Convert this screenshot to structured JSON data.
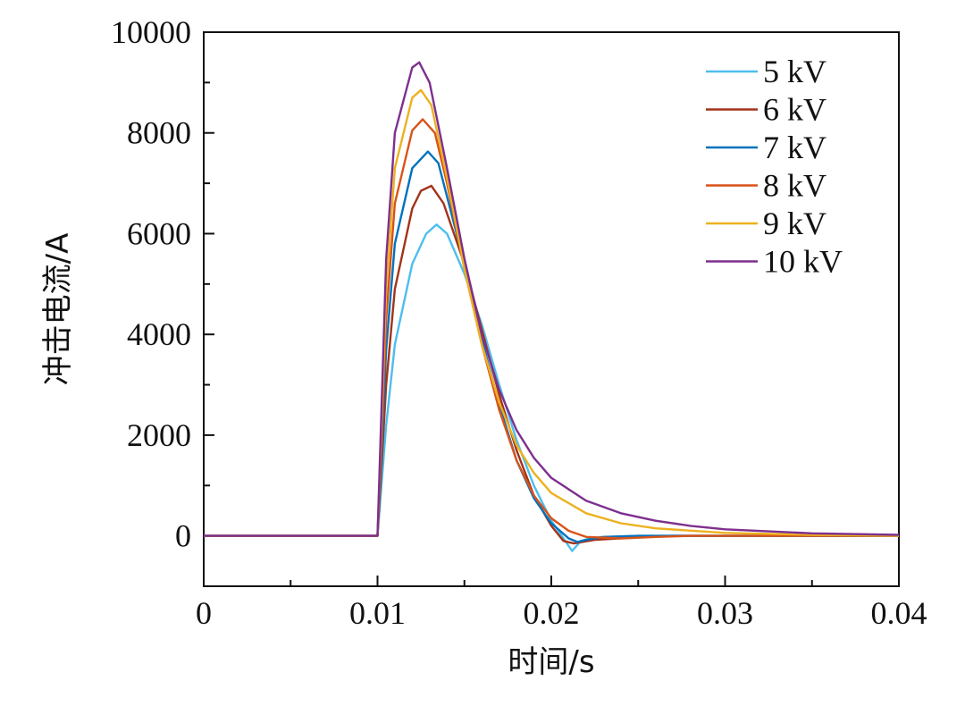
{
  "chart_data": {
    "type": "line",
    "title": "",
    "xlabel": "时间/s",
    "ylabel": "冲击电流/A",
    "xlim": [
      0,
      0.04
    ],
    "ylim": [
      -1000,
      10000
    ],
    "xticks": [
      0,
      0.01,
      0.02,
      0.03,
      0.04
    ],
    "xtick_labels": [
      "0",
      "0.01",
      "0.02",
      "0.03",
      "0.04"
    ],
    "yticks": [
      0,
      2000,
      4000,
      6000,
      8000,
      10000
    ],
    "ytick_labels": [
      "0",
      "2000",
      "4000",
      "6000",
      "8000",
      "10000"
    ],
    "grid": false,
    "legend_position": "top-right",
    "series": [
      {
        "name": "5 kV",
        "color": "#4DBEEE",
        "points": [
          [
            0,
            0
          ],
          [
            0.01,
            0
          ],
          [
            0.0105,
            2200
          ],
          [
            0.011,
            3800
          ],
          [
            0.012,
            5400
          ],
          [
            0.0128,
            6000
          ],
          [
            0.0134,
            6180
          ],
          [
            0.014,
            6000
          ],
          [
            0.015,
            5200
          ],
          [
            0.016,
            4200
          ],
          [
            0.017,
            3000
          ],
          [
            0.018,
            1900
          ],
          [
            0.019,
            1000
          ],
          [
            0.02,
            300
          ],
          [
            0.0206,
            0
          ],
          [
            0.0212,
            -300
          ],
          [
            0.0217,
            -100
          ],
          [
            0.0225,
            -30
          ],
          [
            0.025,
            0
          ],
          [
            0.04,
            0
          ]
        ]
      },
      {
        "name": "6 kV",
        "color": "#A2331A",
        "points": [
          [
            0,
            0
          ],
          [
            0.01,
            0
          ],
          [
            0.0105,
            3000
          ],
          [
            0.011,
            4900
          ],
          [
            0.012,
            6500
          ],
          [
            0.0125,
            6850
          ],
          [
            0.0131,
            6950
          ],
          [
            0.0138,
            6600
          ],
          [
            0.015,
            5400
          ],
          [
            0.016,
            4100
          ],
          [
            0.017,
            2800
          ],
          [
            0.018,
            1700
          ],
          [
            0.019,
            800
          ],
          [
            0.02,
            200
          ],
          [
            0.0207,
            -100
          ],
          [
            0.0213,
            -150
          ],
          [
            0.0225,
            -80
          ],
          [
            0.025,
            -30
          ],
          [
            0.027,
            0
          ],
          [
            0.04,
            0
          ]
        ]
      },
      {
        "name": "7 kV",
        "color": "#0072BD",
        "points": [
          [
            0,
            0
          ],
          [
            0.01,
            0
          ],
          [
            0.0105,
            3700
          ],
          [
            0.011,
            5800
          ],
          [
            0.012,
            7300
          ],
          [
            0.0129,
            7630
          ],
          [
            0.0135,
            7400
          ],
          [
            0.015,
            5400
          ],
          [
            0.016,
            3900
          ],
          [
            0.017,
            2600
          ],
          [
            0.018,
            1500
          ],
          [
            0.019,
            750
          ],
          [
            0.02,
            250
          ],
          [
            0.021,
            -50
          ],
          [
            0.0215,
            -120
          ],
          [
            0.022,
            -80
          ],
          [
            0.023,
            -20
          ],
          [
            0.025,
            0
          ],
          [
            0.04,
            0
          ]
        ]
      },
      {
        "name": "8 kV",
        "color": "#D95319",
        "points": [
          [
            0,
            0
          ],
          [
            0.01,
            0
          ],
          [
            0.0105,
            4300
          ],
          [
            0.011,
            6600
          ],
          [
            0.012,
            8050
          ],
          [
            0.0126,
            8270
          ],
          [
            0.0133,
            8000
          ],
          [
            0.014,
            7000
          ],
          [
            0.015,
            5300
          ],
          [
            0.016,
            3800
          ],
          [
            0.017,
            2500
          ],
          [
            0.018,
            1500
          ],
          [
            0.019,
            800
          ],
          [
            0.02,
            350
          ],
          [
            0.021,
            100
          ],
          [
            0.022,
            -20
          ],
          [
            0.024,
            -50
          ],
          [
            0.026,
            -20
          ],
          [
            0.028,
            0
          ],
          [
            0.04,
            0
          ]
        ]
      },
      {
        "name": "9 kV",
        "color": "#EDB120",
        "points": [
          [
            0,
            0
          ],
          [
            0.01,
            0
          ],
          [
            0.0105,
            4900
          ],
          [
            0.011,
            7300
          ],
          [
            0.012,
            8700
          ],
          [
            0.0125,
            8850
          ],
          [
            0.0131,
            8550
          ],
          [
            0.014,
            7100
          ],
          [
            0.015,
            5300
          ],
          [
            0.016,
            3800
          ],
          [
            0.017,
            2650
          ],
          [
            0.018,
            1800
          ],
          [
            0.019,
            1250
          ],
          [
            0.02,
            850
          ],
          [
            0.022,
            450
          ],
          [
            0.024,
            250
          ],
          [
            0.026,
            150
          ],
          [
            0.03,
            60
          ],
          [
            0.035,
            20
          ],
          [
            0.04,
            0
          ]
        ]
      },
      {
        "name": "10 kV",
        "color": "#7E2F8E",
        "points": [
          [
            0,
            0
          ],
          [
            0.01,
            0
          ],
          [
            0.0105,
            5500
          ],
          [
            0.011,
            8000
          ],
          [
            0.012,
            9300
          ],
          [
            0.0124,
            9400
          ],
          [
            0.013,
            9000
          ],
          [
            0.014,
            7300
          ],
          [
            0.015,
            5500
          ],
          [
            0.016,
            4000
          ],
          [
            0.017,
            2900
          ],
          [
            0.018,
            2100
          ],
          [
            0.019,
            1550
          ],
          [
            0.02,
            1150
          ],
          [
            0.022,
            700
          ],
          [
            0.024,
            450
          ],
          [
            0.026,
            300
          ],
          [
            0.028,
            200
          ],
          [
            0.03,
            130
          ],
          [
            0.035,
            50
          ],
          [
            0.04,
            20
          ]
        ]
      }
    ]
  }
}
